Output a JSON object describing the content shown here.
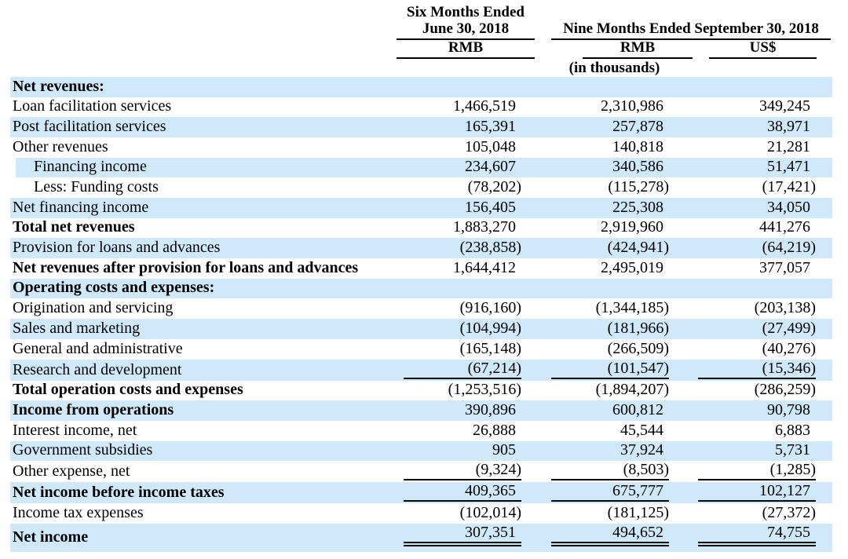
{
  "header": {
    "col1_line1": "Six Months Ended",
    "col1_line2": "June 30, 2018",
    "col23_title": "Nine Months Ended September 30, 2018",
    "col1_unit": "RMB",
    "col2_unit": "RMB",
    "col3_unit": "US$",
    "scale_note": "(in thousands)"
  },
  "colors": {
    "band_blue": "#cfe9fb",
    "text": "#000000"
  },
  "table": {
    "column_semantics": [
      "line-item",
      "six-months-ended-june-30-2018-rmb",
      "nine-months-ended-september-30-2018-rmb",
      "nine-months-ended-september-30-2018-usd"
    ],
    "rows": [
      {
        "label": "Net revenues:",
        "v1": "",
        "v2": "",
        "v3": "",
        "bold": true,
        "shade": "blue"
      },
      {
        "label": "Loan facilitation services",
        "v1": "1,466,519",
        "v2": "2,310,986",
        "v3": "349,245",
        "shade": "white"
      },
      {
        "label": "Post facilitation services",
        "v1": "165,391",
        "v2": "257,878",
        "v3": "38,971",
        "shade": "blue"
      },
      {
        "label": "Other revenues",
        "v1": "105,048",
        "v2": "140,818",
        "v3": "21,281",
        "shade": "white"
      },
      {
        "label": "Financing income",
        "v1": "234,607",
        "v2": "340,586",
        "v3": "51,471",
        "shade": "blue",
        "indent": true,
        "notch": true
      },
      {
        "label": "Less: Funding costs",
        "v1": "(78,202)",
        "v2": "(115,278)",
        "v3": "(17,421)",
        "shade": "white",
        "indent": true
      },
      {
        "label": "Net financing income",
        "v1": "156,405",
        "v2": "225,308",
        "v3": "34,050",
        "shade": "blue"
      },
      {
        "label": "Total net revenues",
        "v1": "1,883,270",
        "v2": "2,919,960",
        "v3": "441,276",
        "bold": true,
        "shade": "white"
      },
      {
        "label": "Provision for loans and advances",
        "v1": "(238,858)",
        "v2": "(424,941)",
        "v3": "(64,219)",
        "shade": "blue"
      },
      {
        "label": "Net revenues after provision for loans and advances",
        "v1": "1,644,412",
        "v2": "2,495,019",
        "v3": "377,057",
        "bold": true,
        "shade": "white"
      },
      {
        "label": "Operating costs and expenses:",
        "v1": "",
        "v2": "",
        "v3": "",
        "bold": true,
        "shade": "blue"
      },
      {
        "label": "Origination and servicing",
        "v1": "(916,160)",
        "v2": "(1,344,185)",
        "v3": "(203,138)",
        "shade": "white"
      },
      {
        "label": "Sales and marketing",
        "v1": "(104,994)",
        "v2": "(181,966)",
        "v3": "(27,499)",
        "shade": "blue"
      },
      {
        "label": "General and administrative",
        "v1": "(165,148)",
        "v2": "(266,509)",
        "v3": "(40,276)",
        "shade": "white"
      },
      {
        "label": "Research and development",
        "v1": "(67,214)",
        "v2": "(101,547)",
        "v3": "(15,346)",
        "shade": "blue",
        "rule": "single"
      },
      {
        "label": "Total operation costs and expenses",
        "v1": "(1,253,516)",
        "v2": "(1,894,207)",
        "v3": "(286,259)",
        "bold": true,
        "shade": "white"
      },
      {
        "label": "Income from operations",
        "v1": "390,896",
        "v2": "600,812",
        "v3": "90,798",
        "bold": true,
        "shade": "blue"
      },
      {
        "label": "Interest income, net",
        "v1": "26,888",
        "v2": "45,544",
        "v3": "6,883",
        "shade": "white"
      },
      {
        "label": "Government subsidies",
        "v1": "905",
        "v2": "37,924",
        "v3": "5,731",
        "shade": "blue"
      },
      {
        "label": "Other expense, net",
        "v1": "(9,324)",
        "v2": "(8,503)",
        "v3": "(1,285)",
        "shade": "white",
        "rule": "single"
      },
      {
        "label": "Net income before income taxes",
        "v1": "409,365",
        "v2": "675,777",
        "v3": "102,127",
        "bold": true,
        "shade": "blue",
        "rule": "single"
      },
      {
        "label": "Income tax expenses",
        "v1": "(102,014)",
        "v2": "(181,125)",
        "v3": "(27,372)",
        "shade": "white"
      },
      {
        "label": "Net income",
        "v1": "307,351",
        "v2": "494,652",
        "v3": "74,755",
        "bold": true,
        "shade": "blue",
        "rule": "double",
        "tall": true
      }
    ]
  }
}
